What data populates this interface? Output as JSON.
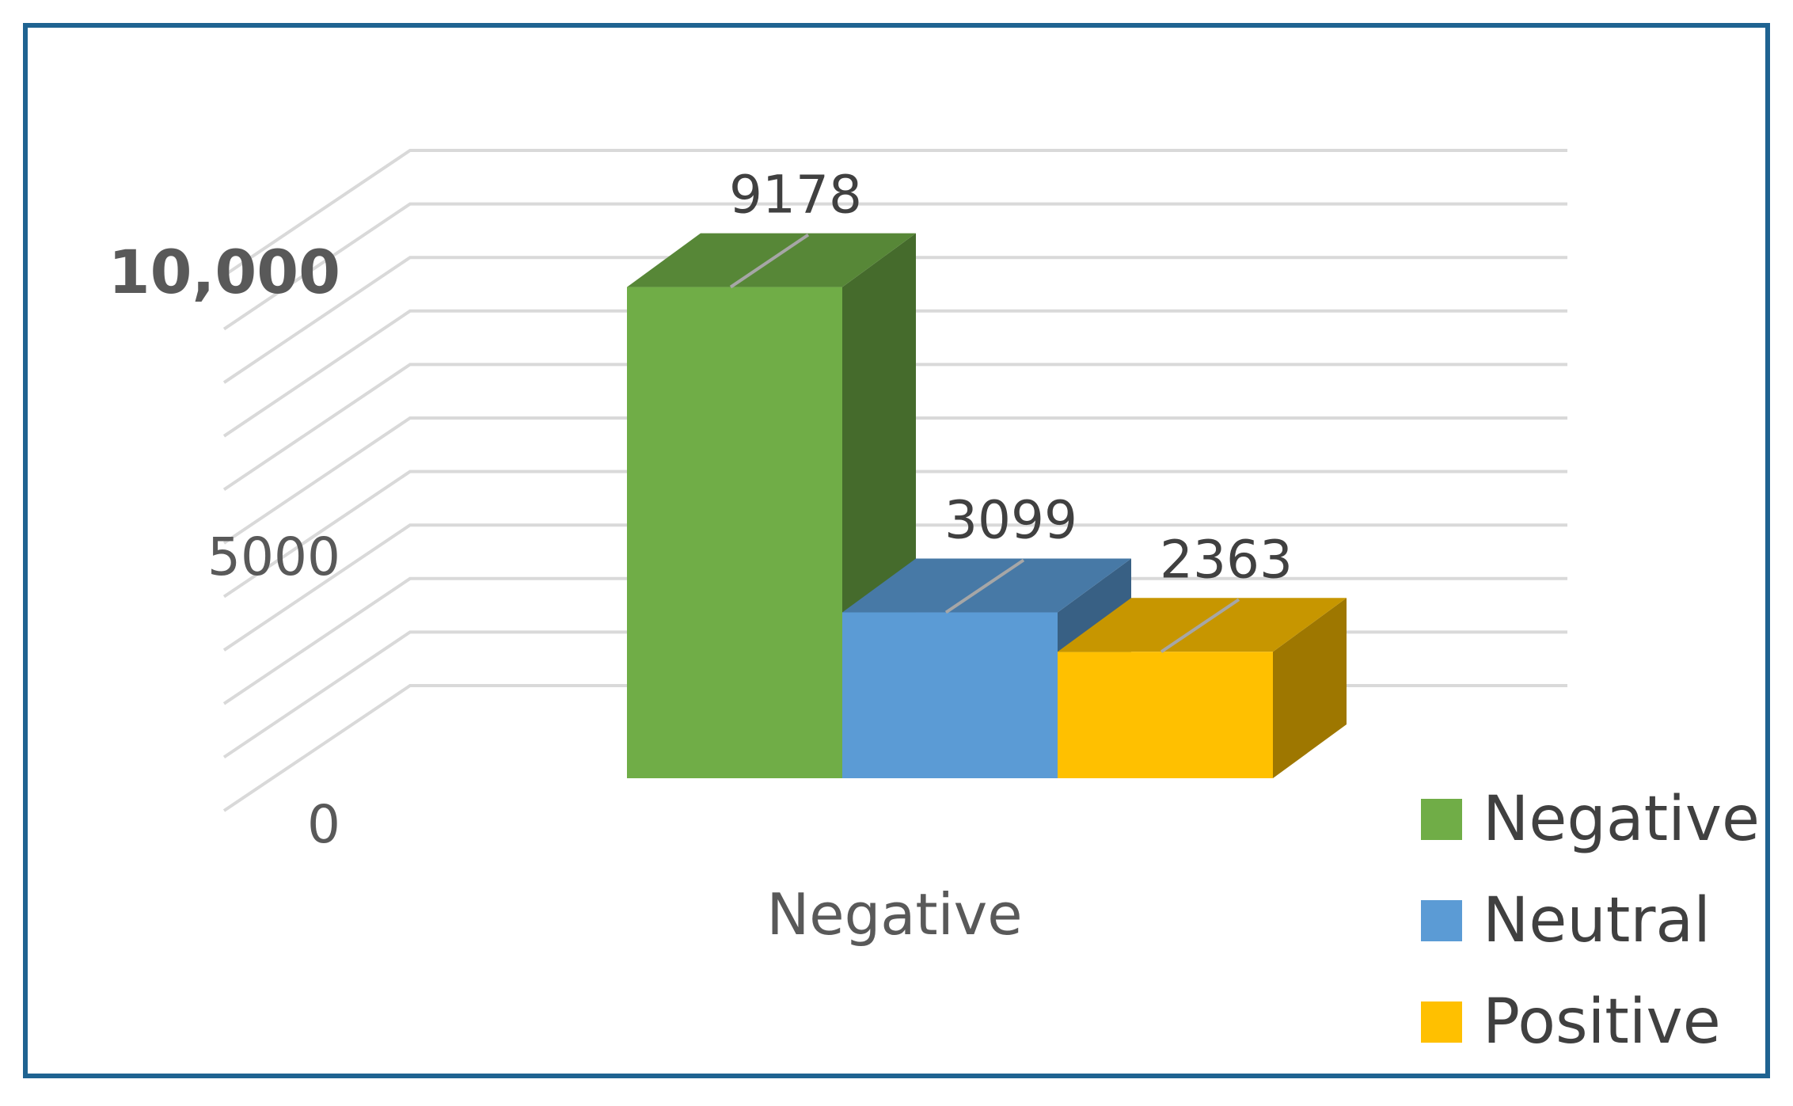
{
  "chart_data": {
    "type": "bar",
    "style": "3d-clustered-column",
    "categories": [
      "Negative"
    ],
    "series": [
      {
        "name": "Negative",
        "values": [
          9178
        ],
        "color": "#70ad47"
      },
      {
        "name": "Neutral",
        "values": [
          3099
        ],
        "color": "#5b9bd5"
      },
      {
        "name": "Positive",
        "values": [
          2363
        ],
        "color": "#ffc000"
      }
    ],
    "y_ticks": [
      {
        "value": 10000,
        "label": "10,000"
      },
      {
        "value": 5000,
        "label": "5000"
      },
      {
        "value": 0,
        "label": "0"
      }
    ],
    "ylim": [
      0,
      10000
    ],
    "grid": true,
    "data_labels": true,
    "legend_position": "right-bottom",
    "frame_color": "#1f6391"
  }
}
